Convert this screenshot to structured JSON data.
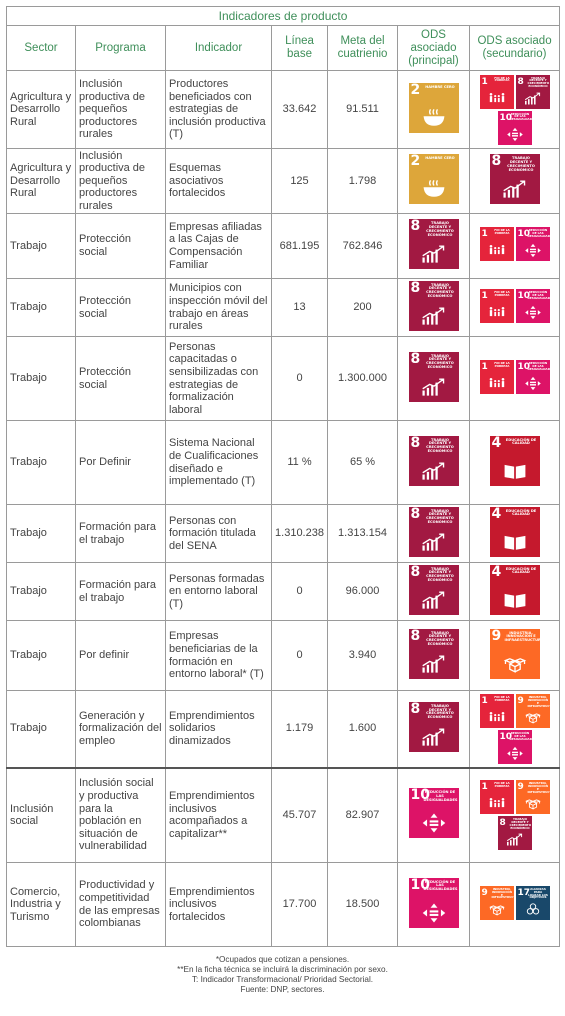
{
  "title": "Indicadores de producto",
  "headers": {
    "sector": "Sector",
    "programa": "Programa",
    "indicador": "Indicador",
    "linea_base": "Línea base",
    "meta": "Meta del cuatrienio",
    "ods_principal": "ODS asociado (principal)",
    "ods_secundario": "ODS asociado (secundario)"
  },
  "sdg_colors": {
    "1": "#e5243b",
    "2": "#dda63a",
    "4": "#c5192d",
    "8": "#a21942",
    "9": "#fd6925",
    "10": "#dd1367",
    "17": "#19486a"
  },
  "sdg_labels": {
    "1": "FIN DE LA POBREZA",
    "2": "HAMBRE CERO",
    "4": "EDUCACIÓN DE CALIDAD",
    "8": "TRABAJO DECENTE Y CRECIMIENTO ECONÓMICO",
    "9": "INDUSTRIA, INNOVACIÓN E INFRAESTRUCTURA",
    "10": "REDUCCIÓN DE LAS DESIGUALDADES",
    "17": "ALIANZAS PARA LOGRAR LOS OBJETIVOS"
  },
  "sdg_icons": {
    "1": "family-icon",
    "2": "bowl-icon",
    "4": "book-icon",
    "8": "growth-chart-icon",
    "9": "cubes-icon",
    "10": "equality-icon",
    "17": "rings-icon"
  },
  "rows": [
    {
      "sector": "Agricultura y Desarrollo Rural",
      "programa": "Inclusión productiva de pequeños productores rurales",
      "indicador": "Productores beneficiados con estrategias de inclusión productiva (T)",
      "linea_base": "33.642",
      "meta": "91.511",
      "principal": [
        "2"
      ],
      "secundario": [
        "1",
        "8",
        "10"
      ]
    },
    {
      "sector": "Agricultura y Desarrollo Rural",
      "programa": "Inclusión productiva de pequeños productores rurales",
      "indicador": "Esquemas asociativos fortalecidos",
      "linea_base": "125",
      "meta": "1.798",
      "principal": [
        "2"
      ],
      "secundario": [
        "8"
      ]
    },
    {
      "sector": "Trabajo",
      "programa": "Protección social",
      "indicador": "Empresas afiliadas a las Cajas de Compensación Familiar",
      "linea_base": "681.195",
      "meta": "762.846",
      "principal": [
        "8"
      ],
      "secundario": [
        "1",
        "10"
      ]
    },
    {
      "sector": "Trabajo",
      "programa": "Protección social",
      "indicador": "Municipios con inspección móvil del trabajo en áreas rurales",
      "linea_base": "13",
      "meta": "200",
      "principal": [
        "8"
      ],
      "secundario": [
        "1",
        "10"
      ]
    },
    {
      "sector": "Trabajo",
      "programa": "Protección social",
      "indicador": "Personas capacitadas o sensibilizadas con estrategias de formalización laboral",
      "linea_base": "0",
      "meta": "1.300.000",
      "principal": [
        "8"
      ],
      "secundario": [
        "1",
        "10"
      ]
    },
    {
      "sector": "Trabajo",
      "programa": "Por Definir",
      "indicador": "Sistema Nacional de Cualificaciones diseñado e implementado (T)",
      "linea_base": "11 %",
      "meta": "65 %",
      "principal": [
        "8"
      ],
      "secundario": [
        "4"
      ]
    },
    {
      "sector": "Trabajo",
      "programa": "Formación para el trabajo",
      "indicador": "Personas con formación titulada del SENA",
      "linea_base": "1.310.238",
      "meta": "1.313.154",
      "principal": [
        "8"
      ],
      "secundario": [
        "4"
      ]
    },
    {
      "sector": "Trabajo",
      "programa": "Formación para el trabajo",
      "indicador": "Personas formadas en entorno laboral (T)",
      "linea_base": "0",
      "meta": "96.000",
      "principal": [
        "8"
      ],
      "secundario": [
        "4"
      ]
    },
    {
      "sector": "Trabajo",
      "programa": "Por definir",
      "indicador": "Empresas beneficiarias de la formación en entorno laboral* (T)",
      "linea_base": "0",
      "meta": "3.940",
      "principal": [
        "8"
      ],
      "secundario": [
        "9"
      ]
    },
    {
      "sector": "Trabajo",
      "programa": "Generación y formalización del empleo",
      "indicador": "Emprendimientos solidarios dinamizados",
      "linea_base": "1.179",
      "meta": "1.600",
      "principal": [
        "8"
      ],
      "secundario": [
        "1",
        "9",
        "10"
      ]
    },
    {
      "sector": "Inclusión social",
      "programa": "Inclusión social y productiva para la población en situación de vulnerabilidad",
      "indicador": "Emprendimientos inclusivos acompañados a capitalizar**",
      "linea_base": "45.707",
      "meta": "82.907",
      "principal": [
        "10"
      ],
      "secundario": [
        "1",
        "9",
        "8"
      ]
    },
    {
      "sector": "Comercio, Industria y Turismo",
      "programa": "Productividad y competitividad de las empresas colombianas",
      "indicador": "Emprendimientos inclusivos fortalecidos",
      "linea_base": "17.700",
      "meta": "18.500",
      "principal": [
        "10"
      ],
      "secundario": [
        "9",
        "17"
      ]
    }
  ],
  "footnotes": [
    "*Ocupados que cotizan a pensiones.",
    "**En la ficha técnica se incluirá la discriminación por sexo.",
    "T: Indicador Transformacional/ Prioridad Sectorial.",
    "Fuente: DNP, sectores."
  ]
}
